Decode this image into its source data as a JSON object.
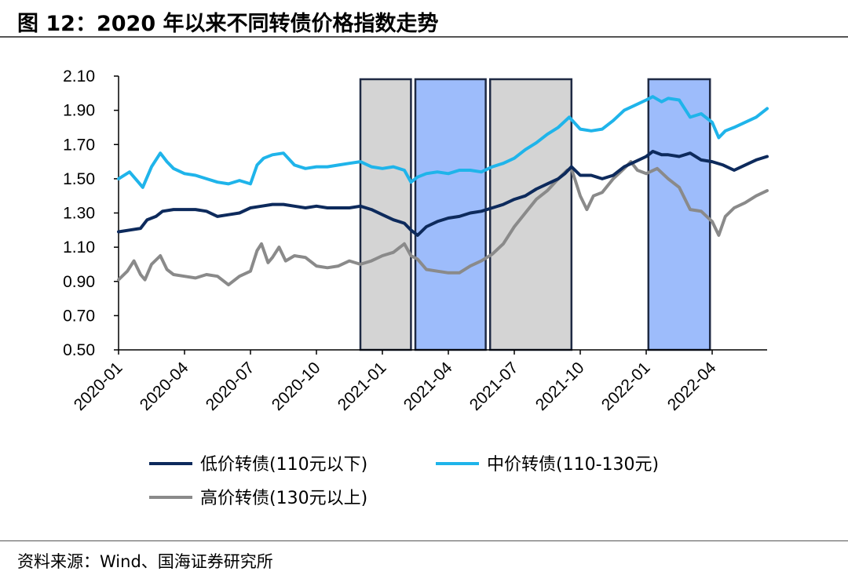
{
  "header": {
    "title": "图 12：2020 年以来不同转债价格指数走势"
  },
  "footer": {
    "source": "资料来源：Wind、国海证券研究所"
  },
  "colors": {
    "low": "#0d2a5c",
    "mid": "#1fb4ea",
    "high": "#8a8a8a",
    "shade_gray": "#d4d4d4",
    "shade_blue": "#9dbcfb",
    "shade_border": "#1f2a44"
  },
  "chart_data": {
    "type": "line",
    "title": "2020 年以来不同转债价格指数走势",
    "xlabel": "",
    "ylabel": "",
    "ylim": [
      0.5,
      2.1
    ],
    "yticks": [
      "0.50",
      "0.70",
      "0.90",
      "1.10",
      "1.30",
      "1.50",
      "1.70",
      "1.90",
      "2.10"
    ],
    "ytick_values": [
      0.5,
      0.7,
      0.9,
      1.1,
      1.3,
      1.5,
      1.7,
      1.9,
      2.1
    ],
    "xticks": [
      "2020-01",
      "2020-04",
      "2020-07",
      "2020-10",
      "2021-01",
      "2021-04",
      "2021-07",
      "2021-10",
      "2022-01",
      "2022-04"
    ],
    "xlim_months": [
      0,
      29.5
    ],
    "shaded_periods": [
      {
        "start": 11.0,
        "end": 13.3,
        "fill": "gray"
      },
      {
        "start": 13.5,
        "end": 16.7,
        "fill": "blue"
      },
      {
        "start": 16.9,
        "end": 20.6,
        "fill": "gray"
      },
      {
        "start": 24.1,
        "end": 26.9,
        "fill": "blue"
      }
    ],
    "series": [
      {
        "name": "低价转债(110元以下)",
        "key": "low",
        "points": [
          [
            0,
            1.19
          ],
          [
            0.5,
            1.2
          ],
          [
            1,
            1.21
          ],
          [
            1.3,
            1.26
          ],
          [
            1.7,
            1.28
          ],
          [
            2,
            1.31
          ],
          [
            2.5,
            1.32
          ],
          [
            3,
            1.32
          ],
          [
            3.5,
            1.32
          ],
          [
            4,
            1.31
          ],
          [
            4.5,
            1.28
          ],
          [
            5,
            1.29
          ],
          [
            5.5,
            1.3
          ],
          [
            6,
            1.33
          ],
          [
            6.5,
            1.34
          ],
          [
            7,
            1.35
          ],
          [
            7.5,
            1.35
          ],
          [
            8,
            1.34
          ],
          [
            8.5,
            1.33
          ],
          [
            9,
            1.34
          ],
          [
            9.5,
            1.33
          ],
          [
            10,
            1.33
          ],
          [
            10.5,
            1.33
          ],
          [
            11,
            1.34
          ],
          [
            11.5,
            1.32
          ],
          [
            12,
            1.29
          ],
          [
            12.5,
            1.26
          ],
          [
            13,
            1.24
          ],
          [
            13.3,
            1.2
          ],
          [
            13.6,
            1.17
          ],
          [
            14,
            1.22
          ],
          [
            14.5,
            1.25
          ],
          [
            15,
            1.27
          ],
          [
            15.5,
            1.28
          ],
          [
            16,
            1.3
          ],
          [
            16.5,
            1.31
          ],
          [
            17,
            1.33
          ],
          [
            17.5,
            1.35
          ],
          [
            18,
            1.38
          ],
          [
            18.5,
            1.4
          ],
          [
            19,
            1.44
          ],
          [
            19.5,
            1.47
          ],
          [
            20,
            1.5
          ],
          [
            20.3,
            1.53
          ],
          [
            20.6,
            1.57
          ],
          [
            21,
            1.52
          ],
          [
            21.5,
            1.52
          ],
          [
            22,
            1.5
          ],
          [
            22.5,
            1.52
          ],
          [
            23,
            1.57
          ],
          [
            23.5,
            1.6
          ],
          [
            24,
            1.63
          ],
          [
            24.3,
            1.66
          ],
          [
            24.7,
            1.64
          ],
          [
            25,
            1.64
          ],
          [
            25.5,
            1.63
          ],
          [
            26,
            1.65
          ],
          [
            26.5,
            1.61
          ],
          [
            27,
            1.6
          ],
          [
            27.5,
            1.58
          ],
          [
            28,
            1.55
          ],
          [
            28.5,
            1.58
          ],
          [
            29,
            1.61
          ],
          [
            29.5,
            1.63
          ]
        ]
      },
      {
        "name": "中价转债(110-130元)",
        "key": "mid",
        "points": [
          [
            0,
            1.5
          ],
          [
            0.5,
            1.54
          ],
          [
            0.9,
            1.48
          ],
          [
            1.1,
            1.45
          ],
          [
            1.5,
            1.57
          ],
          [
            1.9,
            1.65
          ],
          [
            2.2,
            1.6
          ],
          [
            2.5,
            1.56
          ],
          [
            3,
            1.53
          ],
          [
            3.5,
            1.52
          ],
          [
            4,
            1.5
          ],
          [
            4.5,
            1.48
          ],
          [
            5,
            1.47
          ],
          [
            5.5,
            1.49
          ],
          [
            6,
            1.47
          ],
          [
            6.3,
            1.58
          ],
          [
            6.6,
            1.62
          ],
          [
            7,
            1.64
          ],
          [
            7.5,
            1.65
          ],
          [
            8,
            1.58
          ],
          [
            8.5,
            1.56
          ],
          [
            9,
            1.57
          ],
          [
            9.5,
            1.57
          ],
          [
            10,
            1.58
          ],
          [
            10.5,
            1.59
          ],
          [
            11,
            1.6
          ],
          [
            11.5,
            1.57
          ],
          [
            12,
            1.56
          ],
          [
            12.5,
            1.57
          ],
          [
            13,
            1.55
          ],
          [
            13.3,
            1.48
          ],
          [
            13.6,
            1.51
          ],
          [
            14,
            1.53
          ],
          [
            14.5,
            1.54
          ],
          [
            15,
            1.53
          ],
          [
            15.5,
            1.55
          ],
          [
            16,
            1.55
          ],
          [
            16.5,
            1.54
          ],
          [
            17,
            1.57
          ],
          [
            17.5,
            1.59
          ],
          [
            18,
            1.62
          ],
          [
            18.5,
            1.67
          ],
          [
            19,
            1.71
          ],
          [
            19.5,
            1.76
          ],
          [
            20,
            1.8
          ],
          [
            20.5,
            1.86
          ],
          [
            21,
            1.79
          ],
          [
            21.5,
            1.78
          ],
          [
            22,
            1.79
          ],
          [
            22.5,
            1.84
          ],
          [
            23,
            1.9
          ],
          [
            23.5,
            1.93
          ],
          [
            24,
            1.96
          ],
          [
            24.3,
            1.98
          ],
          [
            24.7,
            1.95
          ],
          [
            25,
            1.97
          ],
          [
            25.5,
            1.96
          ],
          [
            26,
            1.86
          ],
          [
            26.5,
            1.88
          ],
          [
            27,
            1.83
          ],
          [
            27.3,
            1.74
          ],
          [
            27.6,
            1.78
          ],
          [
            28,
            1.8
          ],
          [
            28.5,
            1.83
          ],
          [
            29,
            1.86
          ],
          [
            29.5,
            1.91
          ]
        ]
      },
      {
        "name": "高价转债(130元以上)",
        "key": "high",
        "points": [
          [
            0,
            0.91
          ],
          [
            0.4,
            0.96
          ],
          [
            0.7,
            1.02
          ],
          [
            1,
            0.94
          ],
          [
            1.2,
            0.91
          ],
          [
            1.5,
            1.0
          ],
          [
            1.9,
            1.05
          ],
          [
            2.2,
            0.97
          ],
          [
            2.5,
            0.94
          ],
          [
            3,
            0.93
          ],
          [
            3.5,
            0.92
          ],
          [
            4,
            0.94
          ],
          [
            4.5,
            0.93
          ],
          [
            5,
            0.88
          ],
          [
            5.5,
            0.93
          ],
          [
            6,
            0.96
          ],
          [
            6.3,
            1.08
          ],
          [
            6.5,
            1.12
          ],
          [
            6.8,
            1.01
          ],
          [
            7,
            1.04
          ],
          [
            7.3,
            1.1
          ],
          [
            7.6,
            1.02
          ],
          [
            8,
            1.05
          ],
          [
            8.5,
            1.04
          ],
          [
            9,
            0.99
          ],
          [
            9.5,
            0.98
          ],
          [
            10,
            0.99
          ],
          [
            10.5,
            1.02
          ],
          [
            11,
            1.0
          ],
          [
            11.5,
            1.02
          ],
          [
            12,
            1.05
          ],
          [
            12.5,
            1.07
          ],
          [
            13,
            1.12
          ],
          [
            13.3,
            1.05
          ],
          [
            13.6,
            1.03
          ],
          [
            14,
            0.97
          ],
          [
            14.5,
            0.96
          ],
          [
            15,
            0.95
          ],
          [
            15.5,
            0.95
          ],
          [
            16,
            0.99
          ],
          [
            16.5,
            1.02
          ],
          [
            17,
            1.06
          ],
          [
            17.5,
            1.12
          ],
          [
            18,
            1.22
          ],
          [
            18.5,
            1.3
          ],
          [
            19,
            1.38
          ],
          [
            19.5,
            1.43
          ],
          [
            20,
            1.5
          ],
          [
            20.4,
            1.55
          ],
          [
            20.6,
            1.56
          ],
          [
            21,
            1.4
          ],
          [
            21.3,
            1.32
          ],
          [
            21.6,
            1.4
          ],
          [
            22,
            1.42
          ],
          [
            22.5,
            1.5
          ],
          [
            23,
            1.56
          ],
          [
            23.3,
            1.6
          ],
          [
            23.6,
            1.55
          ],
          [
            24,
            1.53
          ],
          [
            24.5,
            1.56
          ],
          [
            25,
            1.5
          ],
          [
            25.5,
            1.45
          ],
          [
            26,
            1.32
          ],
          [
            26.5,
            1.31
          ],
          [
            27,
            1.25
          ],
          [
            27.3,
            1.17
          ],
          [
            27.6,
            1.28
          ],
          [
            28,
            1.33
          ],
          [
            28.5,
            1.36
          ],
          [
            29,
            1.4
          ],
          [
            29.5,
            1.43
          ]
        ]
      }
    ]
  }
}
